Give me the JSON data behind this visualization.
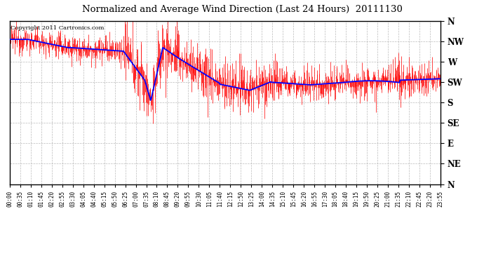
{
  "title": "Normalized and Average Wind Direction (Last 24 Hours)  20111130",
  "copyright": "Copyright 2011 Cartronics.com",
  "background_color": "#ffffff",
  "plot_bg_color": "#ffffff",
  "grid_color": "#aaaaaa",
  "red_color": "#ff0000",
  "blue_color": "#0000ff",
  "ytick_labels": [
    "N",
    "NW",
    "W",
    "SW",
    "S",
    "SE",
    "E",
    "NE",
    "N"
  ],
  "ytick_values": [
    8,
    7,
    6,
    5,
    4,
    3,
    2,
    1,
    0
  ],
  "ylim": [
    0,
    8
  ],
  "xtick_step_minutes": 35,
  "total_minutes": 1435,
  "figsize": [
    6.9,
    3.75
  ],
  "dpi": 100
}
